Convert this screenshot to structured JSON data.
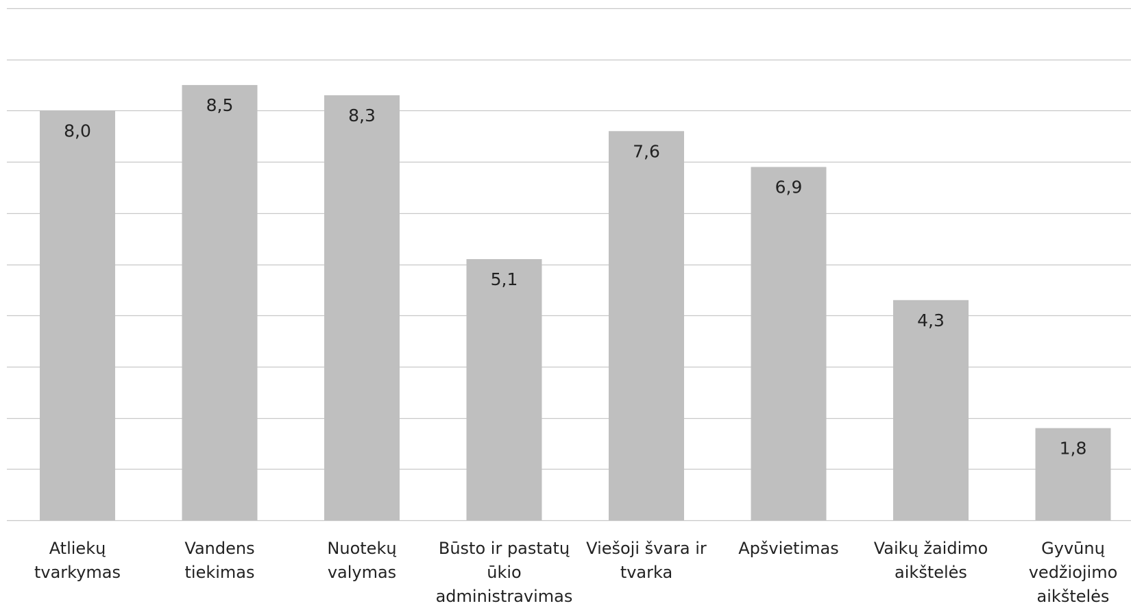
{
  "chart_data": {
    "type": "bar",
    "title": "",
    "xlabel": "",
    "ylabel": "",
    "ylim": [
      0,
      10
    ],
    "grid": true,
    "legend": "none",
    "bar_color": "#bfbfbf",
    "grid_color": "#c8c8c8",
    "categories": [
      [
        "Atliekų",
        "tvarkymas"
      ],
      [
        "Vandens",
        "tiekimas"
      ],
      [
        "Nuotekų",
        "valymas"
      ],
      [
        "Būsto ir pastatų",
        "ūkio",
        "administravimas"
      ],
      [
        "Viešoji švara ir",
        "tvarka"
      ],
      [
        "Apšvietimas"
      ],
      [
        "Vaikų žaidimo",
        "aikštelės"
      ],
      [
        "Gyvūnų",
        "vedžiojimo",
        "aikštelės"
      ]
    ],
    "values": [
      8.0,
      8.5,
      8.3,
      5.1,
      7.6,
      6.9,
      4.3,
      1.8
    ],
    "value_labels": [
      "8,0",
      "8,5",
      "8,3",
      "5,1",
      "7,6",
      "6,9",
      "4,3",
      "1,8"
    ]
  }
}
